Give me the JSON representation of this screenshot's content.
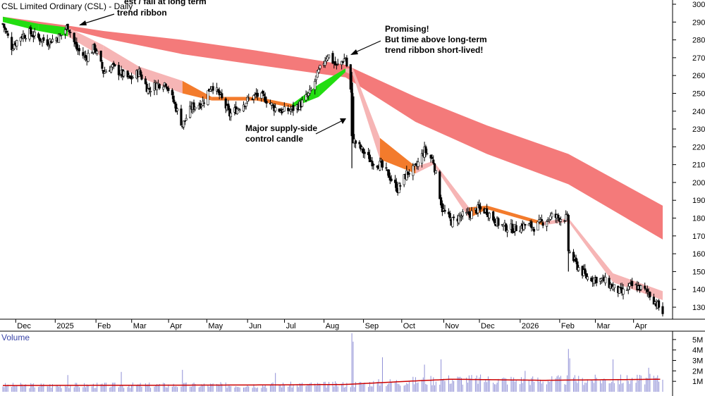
{
  "chart_data": {
    "type": "candlestick",
    "title": "CSL Limited Ordinary (CSL) - Daily",
    "ylim": [
      120,
      300
    ],
    "y_ticks": [
      130,
      140,
      150,
      160,
      170,
      180,
      190,
      200,
      210,
      220,
      230,
      240,
      250,
      260,
      270,
      280,
      290,
      300
    ],
    "x_tick_labels": [
      "Dec",
      "2025",
      "Feb",
      "Mar",
      "Apr",
      "May",
      "Jun",
      "Jul",
      "Aug",
      "Sep",
      "Oct",
      "Nov",
      "Dec",
      "2026",
      "Feb",
      "Mar",
      "Apr"
    ],
    "price_anchors": [
      {
        "date": "2024-11-18",
        "close": 289
      },
      {
        "date": "2024-11-25",
        "close": 276
      },
      {
        "date": "2024-12-02",
        "close": 282
      },
      {
        "date": "2024-12-09",
        "close": 284
      },
      {
        "date": "2024-12-16",
        "close": 281
      },
      {
        "date": "2024-12-23",
        "close": 279
      },
      {
        "date": "2025-01-02",
        "close": 282
      },
      {
        "date": "2025-01-08",
        "close": 288
      },
      {
        "date": "2025-01-15",
        "close": 275
      },
      {
        "date": "2025-01-22",
        "close": 270
      },
      {
        "date": "2025-01-29",
        "close": 276
      },
      {
        "date": "2025-02-05",
        "close": 262
      },
      {
        "date": "2025-02-12",
        "close": 265
      },
      {
        "date": "2025-02-19",
        "close": 261
      },
      {
        "date": "2025-02-26",
        "close": 258
      },
      {
        "date": "2025-03-05",
        "close": 262
      },
      {
        "date": "2025-03-12",
        "close": 252
      },
      {
        "date": "2025-03-19",
        "close": 255
      },
      {
        "date": "2025-03-26",
        "close": 256
      },
      {
        "date": "2025-04-04",
        "close": 240
      },
      {
        "date": "2025-04-08",
        "close": 232
      },
      {
        "date": "2025-04-15",
        "close": 242
      },
      {
        "date": "2025-04-24",
        "close": 245
      },
      {
        "date": "2025-05-01",
        "close": 255
      },
      {
        "date": "2025-05-08",
        "close": 248
      },
      {
        "date": "2025-05-15",
        "close": 238
      },
      {
        "date": "2025-05-22",
        "close": 242
      },
      {
        "date": "2025-05-29",
        "close": 246
      },
      {
        "date": "2025-06-05",
        "close": 249
      },
      {
        "date": "2025-06-12",
        "close": 247
      },
      {
        "date": "2025-06-19",
        "close": 242
      },
      {
        "date": "2025-06-26",
        "close": 240
      },
      {
        "date": "2025-07-03",
        "close": 241
      },
      {
        "date": "2025-07-10",
        "close": 244
      },
      {
        "date": "2025-07-17",
        "close": 250
      },
      {
        "date": "2025-07-24",
        "close": 262
      },
      {
        "date": "2025-07-31",
        "close": 272
      },
      {
        "date": "2025-08-07",
        "close": 265
      },
      {
        "date": "2025-08-14",
        "close": 270
      },
      {
        "date": "2025-08-19",
        "close": 247
      },
      {
        "date": "2025-08-20",
        "close": 224
      },
      {
        "date": "2025-08-27",
        "close": 218
      },
      {
        "date": "2025-09-03",
        "close": 212
      },
      {
        "date": "2025-09-10",
        "close": 210
      },
      {
        "date": "2025-09-17",
        "close": 204
      },
      {
        "date": "2025-09-24",
        "close": 196
      },
      {
        "date": "2025-10-01",
        "close": 205
      },
      {
        "date": "2025-10-08",
        "close": 208
      },
      {
        "date": "2025-10-15",
        "close": 218
      },
      {
        "date": "2025-10-22",
        "close": 212
      },
      {
        "date": "2025-10-29",
        "close": 185
      },
      {
        "date": "2025-11-05",
        "close": 178
      },
      {
        "date": "2025-11-12",
        "close": 181
      },
      {
        "date": "2025-11-19",
        "close": 182
      },
      {
        "date": "2025-11-26",
        "close": 185
      },
      {
        "date": "2025-12-03",
        "close": 184
      },
      {
        "date": "2025-12-10",
        "close": 178
      },
      {
        "date": "2025-12-17",
        "close": 175
      },
      {
        "date": "2025-12-24",
        "close": 174
      },
      {
        "date": "2026-01-02",
        "close": 176
      },
      {
        "date": "2026-01-09",
        "close": 175
      },
      {
        "date": "2026-01-16",
        "close": 178
      },
      {
        "date": "2026-01-23",
        "close": 181
      },
      {
        "date": "2026-01-30",
        "close": 180
      },
      {
        "date": "2026-02-04",
        "close": 180
      },
      {
        "date": "2026-02-05",
        "close": 162
      },
      {
        "date": "2026-02-12",
        "close": 153
      },
      {
        "date": "2026-02-19",
        "close": 147
      },
      {
        "date": "2026-02-26",
        "close": 146
      },
      {
        "date": "2026-03-05",
        "close": 145
      },
      {
        "date": "2026-03-12",
        "close": 141
      },
      {
        "date": "2026-03-19",
        "close": 138
      },
      {
        "date": "2026-03-26",
        "close": 142
      },
      {
        "date": "2026-04-02",
        "close": 141
      },
      {
        "date": "2026-04-09",
        "close": 138
      },
      {
        "date": "2026-04-16",
        "close": 131
      },
      {
        "date": "2026-04-20",
        "close": 127
      }
    ],
    "short_ribbon": [
      {
        "date": "2024-11-18",
        "top": 293,
        "bottom": 290,
        "state": "bullish"
      },
      {
        "date": "2024-12-16",
        "top": 289,
        "bottom": 285,
        "state": "bullish"
      },
      {
        "date": "2025-01-08",
        "top": 287,
        "bottom": 282,
        "state": "bullish"
      },
      {
        "date": "2025-02-05",
        "top": 277,
        "bottom": 270,
        "state": "bearish"
      },
      {
        "date": "2025-03-05",
        "top": 265,
        "bottom": 259,
        "state": "bearish"
      },
      {
        "date": "2025-04-08",
        "top": 257,
        "bottom": 250,
        "state": "bearish"
      },
      {
        "date": "2025-05-01",
        "top": 248,
        "bottom": 246,
        "state": "transition"
      },
      {
        "date": "2025-06-05",
        "top": 248,
        "bottom": 246,
        "state": "transition"
      },
      {
        "date": "2025-07-03",
        "top": 244,
        "bottom": 242,
        "state": "transition"
      },
      {
        "date": "2025-07-24",
        "top": 255,
        "bottom": 248,
        "state": "bullish"
      },
      {
        "date": "2025-08-14",
        "top": 264,
        "bottom": 262,
        "state": "bullish"
      },
      {
        "date": "2025-08-20",
        "top": 264,
        "bottom": 260,
        "state": "bearish"
      },
      {
        "date": "2025-09-10",
        "top": 225,
        "bottom": 213,
        "state": "bearish"
      },
      {
        "date": "2025-10-08",
        "top": 209,
        "bottom": 205,
        "state": "transition"
      },
      {
        "date": "2025-10-22",
        "top": 212,
        "bottom": 210,
        "state": "bearish"
      },
      {
        "date": "2025-11-19",
        "top": 186,
        "bottom": 180,
        "state": "bearish"
      },
      {
        "date": "2025-12-03",
        "top": 187,
        "bottom": 185,
        "state": "transition"
      },
      {
        "date": "2026-01-16",
        "top": 178,
        "bottom": 176,
        "state": "transition"
      },
      {
        "date": "2026-02-05",
        "top": 180,
        "bottom": 178,
        "state": "bearish"
      },
      {
        "date": "2026-03-12",
        "top": 149,
        "bottom": 144,
        "state": "bearish"
      },
      {
        "date": "2026-04-20",
        "top": 139,
        "bottom": 134,
        "state": "bearish"
      }
    ],
    "long_ribbon": [
      {
        "date": "2024-11-18",
        "top": 293,
        "bottom": 291
      },
      {
        "date": "2025-01-08",
        "top": 288,
        "bottom": 286
      },
      {
        "date": "2025-02-05",
        "top": 285,
        "bottom": 281
      },
      {
        "date": "2025-04-08",
        "top": 280,
        "bottom": 272
      },
      {
        "date": "2025-06-05",
        "top": 274,
        "bottom": 266
      },
      {
        "date": "2025-08-14",
        "top": 266,
        "bottom": 259
      },
      {
        "date": "2025-10-08",
        "top": 248,
        "bottom": 234
      },
      {
        "date": "2025-12-03",
        "top": 232,
        "bottom": 216
      },
      {
        "date": "2026-02-05",
        "top": 216,
        "bottom": 199
      },
      {
        "date": "2026-04-20",
        "top": 187,
        "bottom": 168
      }
    ],
    "volume": {
      "label": "Volume",
      "y_ticks": [
        "1M",
        "2M",
        "3M",
        "4M",
        "5M"
      ],
      "ylim": [
        0,
        5.8
      ],
      "unit": "million shares",
      "typical": 1.0,
      "spikes": [
        {
          "date": "2025-01-08",
          "value": 1.6
        },
        {
          "date": "2025-02-19",
          "value": 1.9
        },
        {
          "date": "2025-04-08",
          "value": 2.1
        },
        {
          "date": "2025-06-20",
          "value": 1.8
        },
        {
          "date": "2025-08-19",
          "value": 5.6
        },
        {
          "date": "2025-08-20",
          "value": 4.8
        },
        {
          "date": "2025-09-12",
          "value": 3.3
        },
        {
          "date": "2025-10-15",
          "value": 2.6
        },
        {
          "date": "2025-10-28",
          "value": 3.1
        },
        {
          "date": "2026-01-02",
          "value": 2.0
        },
        {
          "date": "2026-02-05",
          "value": 4.1
        },
        {
          "date": "2026-02-06",
          "value": 3.2
        },
        {
          "date": "2026-03-12",
          "value": 3.1
        },
        {
          "date": "2026-04-09",
          "value": 2.3
        }
      ],
      "average": [
        {
          "date": "2024-11-18",
          "value": 0.6
        },
        {
          "date": "2025-06-05",
          "value": 0.65
        },
        {
          "date": "2025-08-14",
          "value": 0.7
        },
        {
          "date": "2025-10-01",
          "value": 1.0
        },
        {
          "date": "2025-11-05",
          "value": 1.2
        },
        {
          "date": "2026-01-16",
          "value": 1.1
        },
        {
          "date": "2026-04-20",
          "value": 1.2
        }
      ]
    },
    "annotations": [
      {
        "id": "ann-ribbon",
        "lines": [
          "est / fall at long term",
          "trend ribbon"
        ]
      },
      {
        "id": "ann-promising",
        "lines": [
          "Promising!",
          "But time above long-term",
          "trend ribbon short-lived!"
        ]
      },
      {
        "id": "ann-supply",
        "lines": [
          "Major supply-side",
          "control candle"
        ]
      }
    ],
    "colors": {
      "long_ribbon": "#f47a7a",
      "short_bearish": "#f6b5b5",
      "short_transition": "#f37b2c",
      "short_bullish": "#22dd11",
      "candle": "#000000",
      "volume_bar": "#8f8fd6",
      "volume_avg": "#cc0000",
      "volume_label": "#3b45a8",
      "grid": "#dddddd"
    },
    "grid": false
  }
}
